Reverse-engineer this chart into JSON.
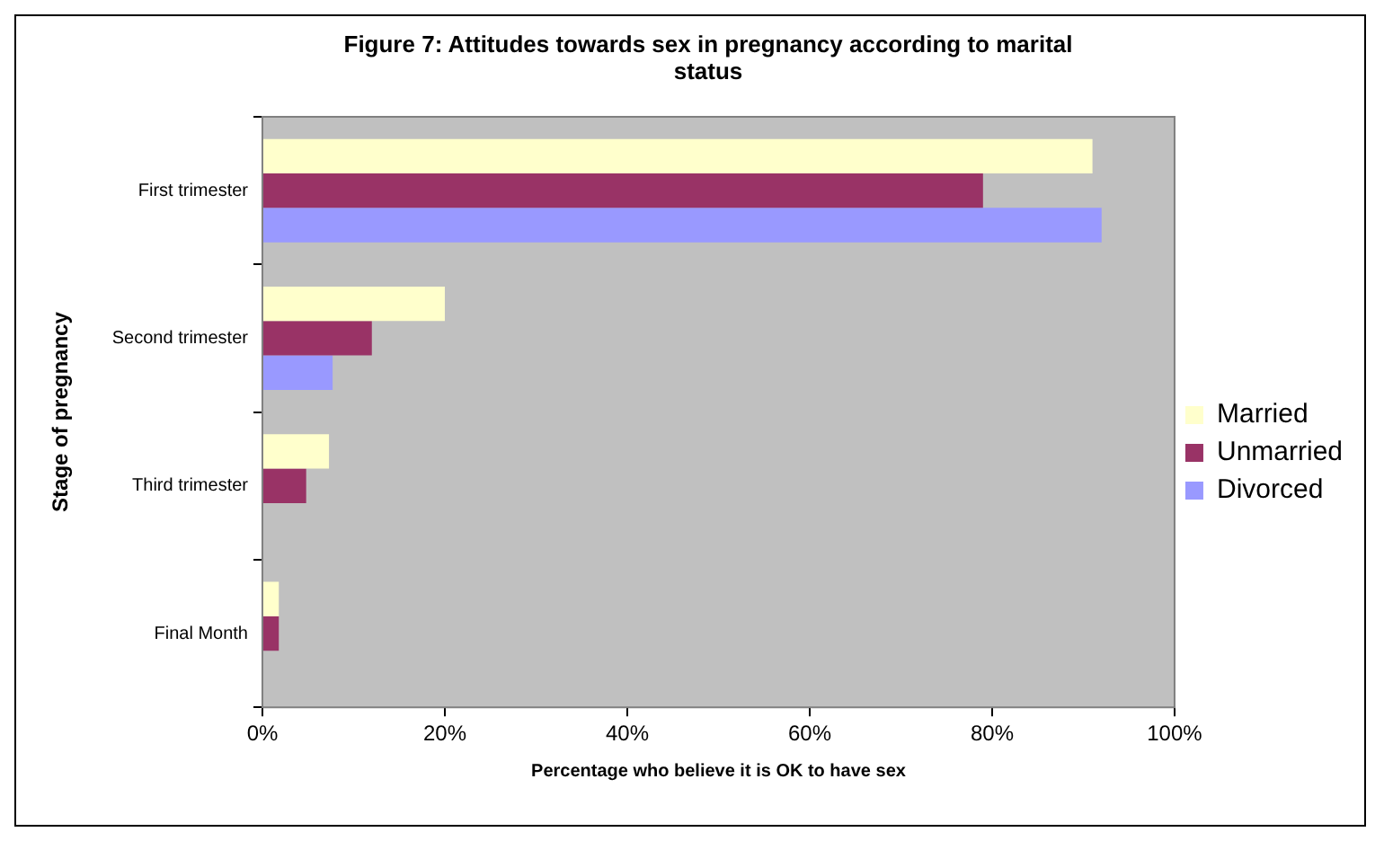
{
  "chart_data": {
    "type": "bar",
    "orientation": "horizontal",
    "title": "Figure 7: Attitudes towards sex in pregnancy according to marital status",
    "xlabel": "Percentage who believe it is OK to have sex",
    "ylabel": "Stage of pregnancy",
    "categories": [
      "First trimester",
      "Second trimester",
      "Third trimester",
      "Final Month"
    ],
    "series": [
      {
        "name": "Married",
        "color": "#ffffcc",
        "values": [
          91,
          20,
          7.3,
          1.8
        ]
      },
      {
        "name": "Unmarried",
        "color": "#993366",
        "values": [
          79,
          12,
          4.8,
          1.8
        ]
      },
      {
        "name": "Divorced",
        "color": "#9999ff",
        "values": [
          92,
          7.7,
          0,
          0
        ]
      }
    ],
    "xlim": [
      0,
      100
    ],
    "xticks": [
      {
        "value": 0,
        "label": "0%"
      },
      {
        "value": 20,
        "label": "20%"
      },
      {
        "value": 40,
        "label": "40%"
      },
      {
        "value": 60,
        "label": "60%"
      },
      {
        "value": 80,
        "label": "80%"
      },
      {
        "value": 100,
        "label": "100%"
      }
    ],
    "grid": false,
    "legend": "right"
  }
}
